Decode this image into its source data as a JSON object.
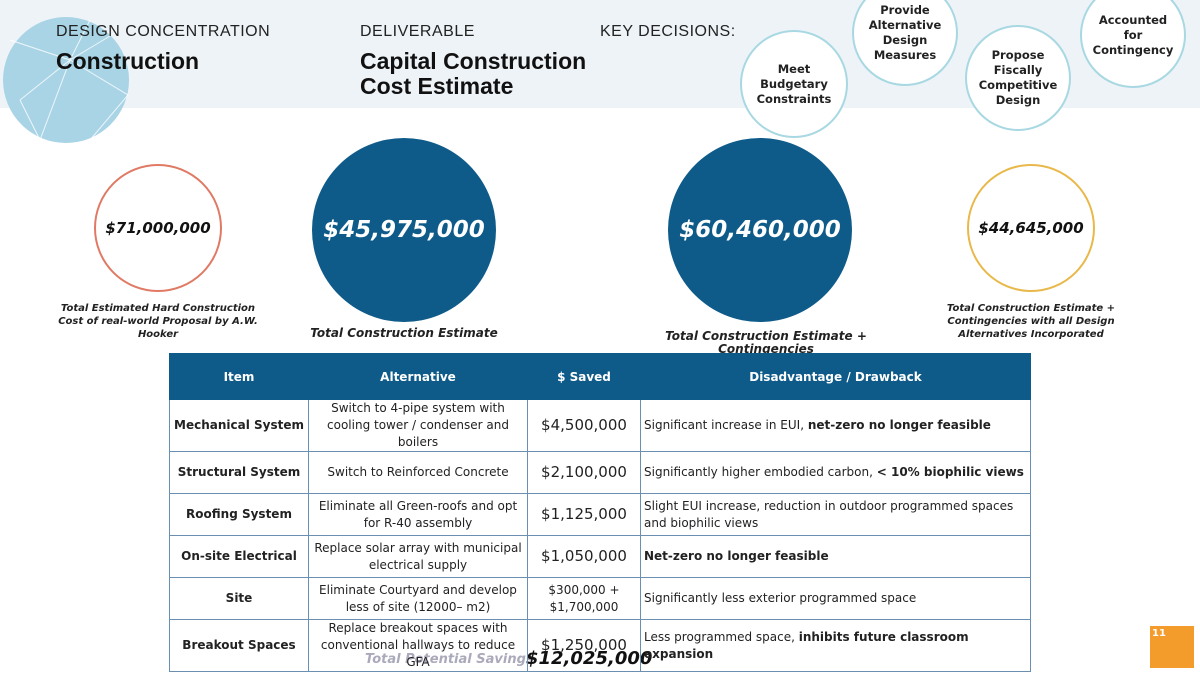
{
  "header": {
    "concentration_label": "DESIGN CONCENTRATION",
    "concentration": "Construction",
    "deliverable_label": "DELIVERABLE",
    "deliverable_lines": [
      "Capital Construction",
      "Cost Estimate"
    ],
    "key_decisions_label": "KEY DECISIONS:",
    "decisions": [
      "Meet Budgetary Constraints",
      "Provide Alternative Design Measures",
      "Propose Fiscally Competitive Design",
      "Accounted for Contingency"
    ]
  },
  "estimates": [
    {
      "value": "$71,000,000",
      "caption": "Total Estimated Hard Construction Cost of real-world Proposal by A.W. Hooker"
    },
    {
      "value": "$45,975,000",
      "caption": "Total Construction Estimate"
    },
    {
      "value": "$60,460,000",
      "caption": "Total Construction Estimate + Contingencies"
    },
    {
      "value": "$44,645,000",
      "caption": "Total Construction Estimate + Contingencies with all Design Alternatives Incorporated"
    }
  ],
  "table": {
    "columns": [
      "Item",
      "Alternative",
      "$ Saved",
      "Disadvantage / Drawback"
    ],
    "rows": [
      [
        "Mechanical System",
        "Switch to 4-pipe system with cooling tower / condenser and boilers",
        "$4,500,000",
        [
          "Significant increase in EUI, ",
          "net-zero no longer feasible"
        ]
      ],
      [
        "Structural System",
        "Switch to Reinforced Concrete",
        "$2,100,000",
        [
          "Significantly higher embodied carbon, ",
          "< 10% biophilic views"
        ]
      ],
      [
        "Roofing System",
        "Eliminate all Green-roofs and opt for R-40 assembly",
        "$1,125,000",
        [
          "Slight EUI increase, reduction in outdoor programmed spaces and biophilic views"
        ]
      ],
      [
        "On-site Electrical",
        "Replace solar array with municipal electrical supply",
        "$1,050,000",
        [
          "",
          "Net-zero no longer feasible"
        ]
      ],
      [
        "Site",
        "Eliminate Courtyard and develop less of site (12000– m2)",
        "$300,000 + $1,700,000",
        [
          "Significantly less exterior programmed space"
        ]
      ],
      [
        "Breakout Spaces",
        "Replace breakout spaces with conventional hallways to reduce GFA",
        "$1,250,000",
        [
          "Less programmed space, ",
          "inhibits future classroom expansion"
        ]
      ]
    ]
  },
  "total": {
    "label": "Total Potential Savings",
    "value": "$12,025,000"
  },
  "badge": "11"
}
